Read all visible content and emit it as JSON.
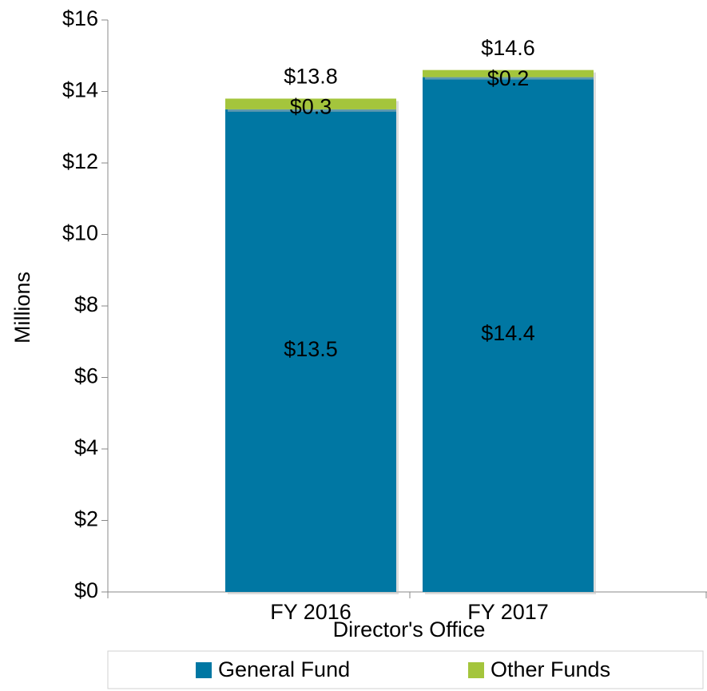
{
  "chart_data": {
    "type": "stacked_bar",
    "xlabel": "Director's Office",
    "ylabel": "Millions",
    "categories": [
      "FY 2016",
      "FY 2017"
    ],
    "series": [
      {
        "name": "General Fund",
        "color": "#0077a3",
        "values": [
          13.5,
          14.4
        ],
        "value_labels": [
          "$13.5",
          "$14.4"
        ]
      },
      {
        "name": "Other Funds",
        "color": "#a4c53c",
        "values": [
          0.3,
          0.2
        ],
        "value_labels": [
          "$0.3",
          "$0.2"
        ]
      }
    ],
    "totals": [
      13.8,
      14.6
    ],
    "total_labels": [
      "$13.8",
      "$14.6"
    ],
    "ylim": [
      0,
      16
    ],
    "yticks": [
      {
        "value": 0,
        "label": "$0"
      },
      {
        "value": 2,
        "label": "$2"
      },
      {
        "value": 4,
        "label": "$4"
      },
      {
        "value": 6,
        "label": "$6"
      },
      {
        "value": 8,
        "label": "$8"
      },
      {
        "value": 10,
        "label": "$10"
      },
      {
        "value": 12,
        "label": "$12"
      },
      {
        "value": 14,
        "label": "$14"
      },
      {
        "value": 16,
        "label": "$16"
      }
    ],
    "legend": "bottom"
  }
}
